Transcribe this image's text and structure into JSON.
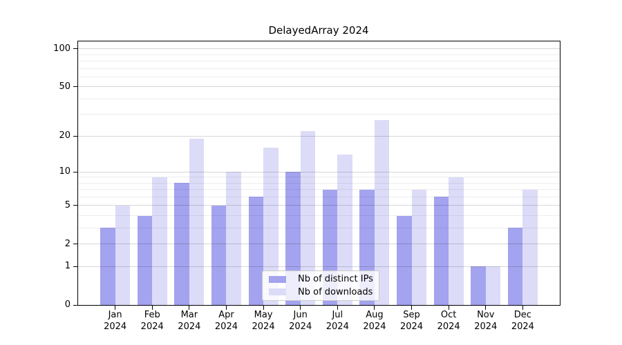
{
  "figure": {
    "title": "DelayedArray 2024"
  },
  "chart_data": {
    "type": "bar",
    "title": "DelayedArray 2024",
    "categories": [
      "Jan",
      "Feb",
      "Mar",
      "Apr",
      "May",
      "Jun",
      "Jul",
      "Aug",
      "Sep",
      "Oct",
      "Nov",
      "Dec"
    ],
    "year": "2024",
    "series": [
      {
        "name": "Nb of distinct IPs",
        "color": "#a3a3ef",
        "values": [
          3,
          4,
          8,
          5,
          6,
          10,
          7,
          7,
          4,
          6,
          1,
          3
        ]
      },
      {
        "name": "Nb of downloads",
        "color": "#dcdcf8",
        "values": [
          5,
          9,
          19,
          10,
          16,
          22,
          14,
          27,
          7,
          9,
          1,
          7
        ]
      }
    ],
    "xlabel": "",
    "ylabel": "",
    "y_axis": {
      "scale": "log1p",
      "ticks": [
        0,
        1,
        2,
        5,
        10,
        20,
        50,
        100
      ],
      "minor_gridlines": [
        3,
        4,
        6,
        7,
        8,
        9,
        30,
        40,
        60,
        70,
        80,
        90
      ],
      "range": [
        0,
        115
      ]
    },
    "grid": true,
    "legend": {
      "position": "lower center"
    }
  }
}
